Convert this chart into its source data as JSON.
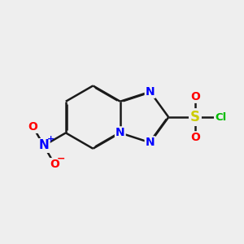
{
  "bg_color": "#eeeeee",
  "bond_color": "#1a1a1a",
  "bond_width": 1.8,
  "atom_colors": {
    "N": "#0000ff",
    "O": "#ff0000",
    "S": "#cccc00",
    "Cl": "#00bb00"
  },
  "font_size": 10,
  "fig_size": [
    3.0,
    3.0
  ],
  "dpi": 100
}
